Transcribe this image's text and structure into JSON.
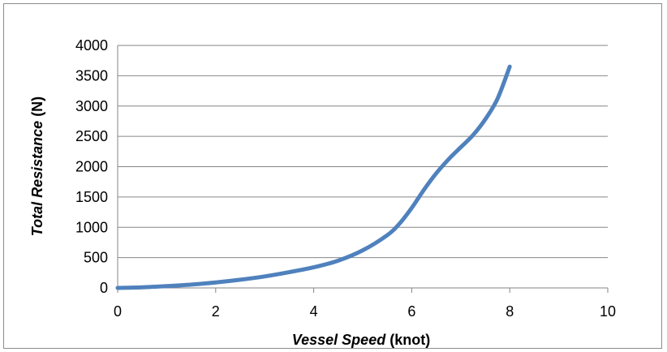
{
  "chart_data": {
    "type": "line",
    "title": "",
    "xlabel_italic": "Vessel Speed",
    "xlabel_unit": " (knot)",
    "ylabel_italic": "Total Resistance",
    "ylabel_unit": " (N)",
    "xlim": [
      0,
      10
    ],
    "ylim": [
      0,
      4000
    ],
    "x_ticks": [
      "0",
      "2",
      "4",
      "6",
      "8",
      "10"
    ],
    "y_ticks": [
      "0",
      "500",
      "1000",
      "1500",
      "2000",
      "2500",
      "3000",
      "3500",
      "4000"
    ],
    "grid": "horizontal",
    "legend": "none",
    "series": [
      {
        "color": "#4F81BD",
        "x": [
          0,
          0.5,
          1,
          1.5,
          2,
          2.5,
          3,
          3.5,
          4,
          4.5,
          5,
          5.5,
          5.75,
          6,
          6.25,
          6.5,
          6.75,
          7,
          7.25,
          7.5,
          7.75,
          8
        ],
        "y": [
          0,
          10,
          30,
          55,
          90,
          135,
          190,
          260,
          340,
          450,
          620,
          870,
          1060,
          1320,
          1620,
          1890,
          2120,
          2320,
          2520,
          2780,
          3120,
          3650
        ]
      }
    ]
  }
}
